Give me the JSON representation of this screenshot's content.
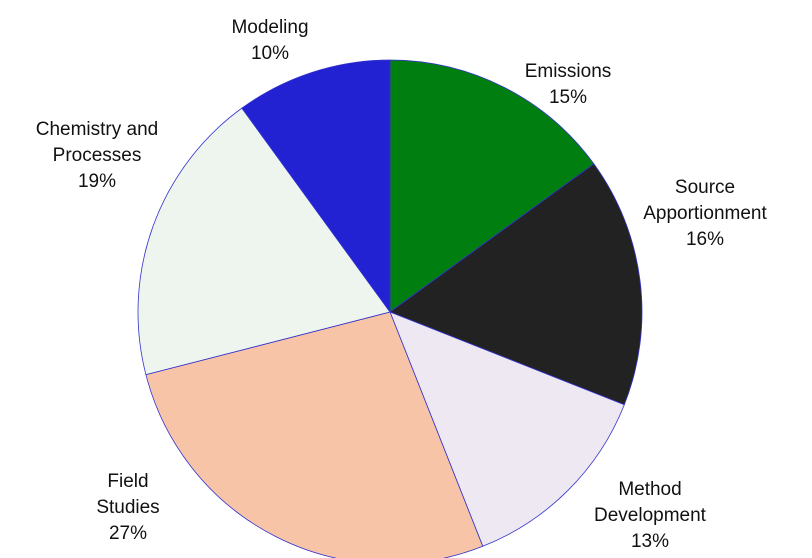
{
  "chart_data": {
    "type": "pie",
    "categories": [
      "Emissions",
      "Source Apportionment",
      "Method Development",
      "Field Studies",
      "Chemistry and Processes",
      "Modeling"
    ],
    "values": [
      15,
      16,
      13,
      27,
      19,
      10
    ],
    "value_labels": [
      "15%",
      "16%",
      "13%",
      "27%",
      "19%",
      "10%"
    ],
    "colors": [
      "#007f10",
      "#222222",
      "#ede8f2",
      "#f8c4a8",
      "#eef5ee",
      "#2222d2"
    ]
  }
}
